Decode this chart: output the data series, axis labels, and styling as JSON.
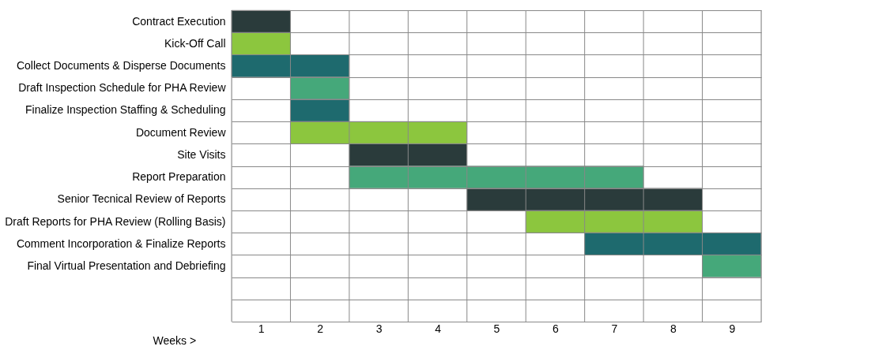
{
  "chart_data": {
    "type": "bar",
    "orientation": "horizontal",
    "xlabel": "Weeks >",
    "categories": [
      "Contract Execution",
      "Kick-Off Call",
      "Collect Documents & Disperse Documents",
      "Draft Inspection Schedule for PHA Review",
      "Finalize Inspection Staffing & Scheduling",
      "Document Review",
      "Site Visits",
      "Report Preparation",
      "Senior Tecnical Review of Reports",
      "Draft Reports for PHA Review (Rolling Basis)",
      "Comment Incorporation & Finalize Reports",
      "Final Virtual Presentation and Debriefing",
      null,
      null
    ],
    "base": [
      0,
      0,
      0,
      1,
      1,
      1,
      2,
      2,
      4,
      5,
      6,
      8,
      null,
      null
    ],
    "values": [
      1,
      1,
      2,
      1,
      1,
      3,
      2,
      5,
      4,
      3,
      3,
      1,
      null,
      null
    ],
    "colors": [
      "#2a3b3b",
      "#8cc63e",
      "#1e6a6e",
      "#45a87a",
      "#1e6a6e",
      "#8cc63e",
      "#2a3b3b",
      "#45a87a",
      "#2a3b3b",
      "#8cc63e",
      "#1e6a6e",
      "#45a87a",
      "#ffffff",
      "#ffffff"
    ],
    "xlim": [
      0,
      9
    ],
    "xticks": [
      {
        "value": 0.5,
        "label": "1"
      },
      {
        "value": 1.5,
        "label": "2"
      },
      {
        "value": 2.5,
        "label": "3"
      },
      {
        "value": 3.5,
        "label": "4"
      },
      {
        "value": 4.5,
        "label": "5"
      },
      {
        "value": 5.5,
        "label": "6"
      },
      {
        "value": 6.5,
        "label": "7"
      },
      {
        "value": 7.5,
        "label": "8"
      },
      {
        "value": 8.5,
        "label": "9"
      }
    ],
    "grid": true,
    "legend": false
  }
}
